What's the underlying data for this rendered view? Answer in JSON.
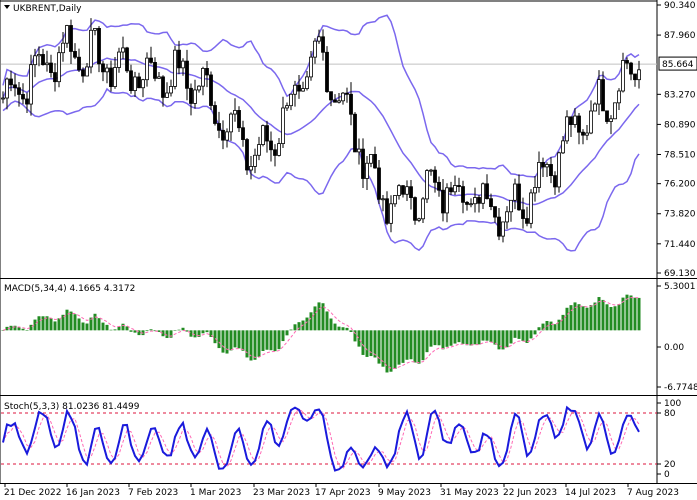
{
  "window": {
    "symbol_title": "UKBRENT,Daily",
    "current_price": "85.664"
  },
  "colors": {
    "candle": "#000000",
    "bollinger": "#7b68ee",
    "macd_hist": "#228b22",
    "macd_signal": "#ff69b4",
    "stoch_main": "#1a1adc",
    "stoch_signal": "#ff69b4",
    "stoch_level": "#dc143c",
    "price_level": "#c0c0c0",
    "price_label_bg": "#ffffff"
  },
  "main_panel": {
    "y_labels": [
      "90.340",
      "87.960",
      "85.664",
      "83.270",
      "80.890",
      "78.510",
      "76.200",
      "73.820",
      "71.440",
      "69.130"
    ],
    "y_values": [
      90.34,
      87.96,
      85.664,
      83.27,
      80.89,
      78.51,
      76.2,
      73.82,
      71.44,
      69.13
    ],
    "ylim": [
      69.13,
      90.34
    ]
  },
  "macd_panel": {
    "label": "MACD(5,34,4) 4.1665 4.3172",
    "y_labels": [
      "5.3001",
      "0.00",
      "-6.7748"
    ]
  },
  "stoch_panel": {
    "label": "Stoch(5,3,3) 81.0236 81.4499",
    "y_labels": [
      "100",
      "80",
      "20",
      "0"
    ]
  },
  "x_labels": [
    "21 Dec 2022",
    "16 Jan 2023",
    "7 Feb 2023",
    "1 Mar 2023",
    "23 Mar 2023",
    "17 Apr 2023",
    "9 May 2023",
    "31 May 2023",
    "22 Jun 2023",
    "14 Jul 2023",
    "7 Aug 2023"
  ],
  "chart_data": {
    "type": "candlestick",
    "instrument": "UKBRENT",
    "timeframe": "Daily",
    "x_categories": [
      "21 Dec 2022",
      "16 Jan 2023",
      "7 Feb 2023",
      "1 Mar 2023",
      "23 Mar 2023",
      "17 Apr 2023",
      "9 May 2023",
      "31 May 2023",
      "22 Jun 2023",
      "14 Jul 2023",
      "7 Aug 2023"
    ],
    "close_approx": [
      83.0,
      87.0,
      85.0,
      84.5,
      78.0,
      86.5,
      74.5,
      76.0,
      74.0,
      80.5,
      85.7
    ],
    "last_price": 85.664,
    "ylim": [
      69.13,
      90.34
    ],
    "macd": {
      "params": "5,34,4",
      "value": 4.1665,
      "signal": 4.3172,
      "ylim": [
        -6.7748,
        5.3001
      ]
    },
    "stochastic": {
      "params": "5,3,3",
      "main": 81.0236,
      "signal": 81.4499,
      "levels": [
        20,
        80
      ],
      "ylim": [
        0,
        100
      ]
    }
  }
}
